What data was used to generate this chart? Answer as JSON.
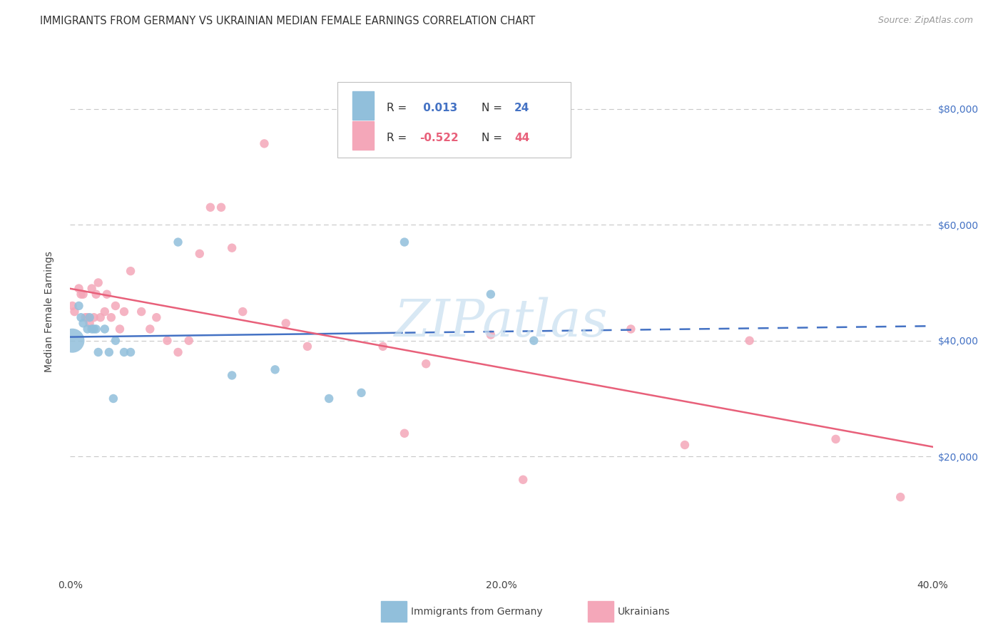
{
  "title": "IMMIGRANTS FROM GERMANY VS UKRAINIAN MEDIAN FEMALE EARNINGS CORRELATION CHART",
  "source": "Source: ZipAtlas.com",
  "ylabel": "Median Female Earnings",
  "xlim": [
    0.0,
    0.4
  ],
  "ylim": [
    0,
    90000
  ],
  "yticks": [
    0,
    20000,
    40000,
    60000,
    80000
  ],
  "ytick_labels": [
    "",
    "$20,000",
    "$40,000",
    "$60,000",
    "$80,000"
  ],
  "xticks": [
    0.0,
    0.1,
    0.2,
    0.3,
    0.4
  ],
  "xtick_labels": [
    "0.0%",
    "",
    "20.0%",
    "",
    "40.0%"
  ],
  "germany_R": "0.013",
  "germany_N": "24",
  "ukraine_R": "-0.522",
  "ukraine_N": "44",
  "germany_color": "#91bfdb",
  "ukraine_color": "#f4a7b9",
  "germany_line_color": "#4472c4",
  "ukraine_line_color": "#e8607a",
  "watermark": "ZIPatlas",
  "germany_x": [
    0.001,
    0.004,
    0.005,
    0.006,
    0.008,
    0.009,
    0.01,
    0.011,
    0.012,
    0.013,
    0.016,
    0.018,
    0.02,
    0.021,
    0.025,
    0.028,
    0.05,
    0.075,
    0.095,
    0.12,
    0.135,
    0.155,
    0.195,
    0.215
  ],
  "germany_y": [
    40000,
    46000,
    44000,
    43000,
    42000,
    44000,
    42000,
    42000,
    42000,
    38000,
    42000,
    38000,
    30000,
    40000,
    38000,
    38000,
    57000,
    34000,
    35000,
    30000,
    31000,
    57000,
    48000,
    40000
  ],
  "germany_sizes": [
    600,
    80,
    80,
    80,
    80,
    80,
    80,
    80,
    80,
    80,
    80,
    80,
    80,
    80,
    80,
    80,
    80,
    80,
    80,
    80,
    80,
    80,
    80,
    80
  ],
  "ukraine_x": [
    0.001,
    0.002,
    0.004,
    0.005,
    0.006,
    0.007,
    0.008,
    0.009,
    0.01,
    0.011,
    0.012,
    0.013,
    0.014,
    0.016,
    0.017,
    0.019,
    0.021,
    0.023,
    0.025,
    0.028,
    0.033,
    0.037,
    0.04,
    0.045,
    0.05,
    0.055,
    0.06,
    0.065,
    0.07,
    0.075,
    0.08,
    0.09,
    0.1,
    0.11,
    0.145,
    0.155,
    0.165,
    0.195,
    0.21,
    0.26,
    0.285,
    0.315,
    0.355,
    0.385
  ],
  "ukraine_y": [
    46000,
    45000,
    49000,
    48000,
    48000,
    44000,
    44000,
    43000,
    49000,
    44000,
    48000,
    50000,
    44000,
    45000,
    48000,
    44000,
    46000,
    42000,
    45000,
    52000,
    45000,
    42000,
    44000,
    40000,
    38000,
    40000,
    55000,
    63000,
    63000,
    56000,
    45000,
    74000,
    43000,
    39000,
    39000,
    24000,
    36000,
    41000,
    16000,
    42000,
    22000,
    40000,
    23000,
    13000
  ],
  "ukraine_sizes": [
    80,
    80,
    80,
    80,
    80,
    80,
    80,
    80,
    80,
    80,
    80,
    80,
    80,
    80,
    80,
    80,
    80,
    80,
    80,
    80,
    80,
    80,
    80,
    80,
    80,
    80,
    80,
    80,
    80,
    80,
    80,
    80,
    80,
    80,
    80,
    80,
    80,
    80,
    80,
    80,
    80,
    80,
    80,
    80
  ],
  "background_color": "#ffffff",
  "grid_color": "#c8c8c8"
}
